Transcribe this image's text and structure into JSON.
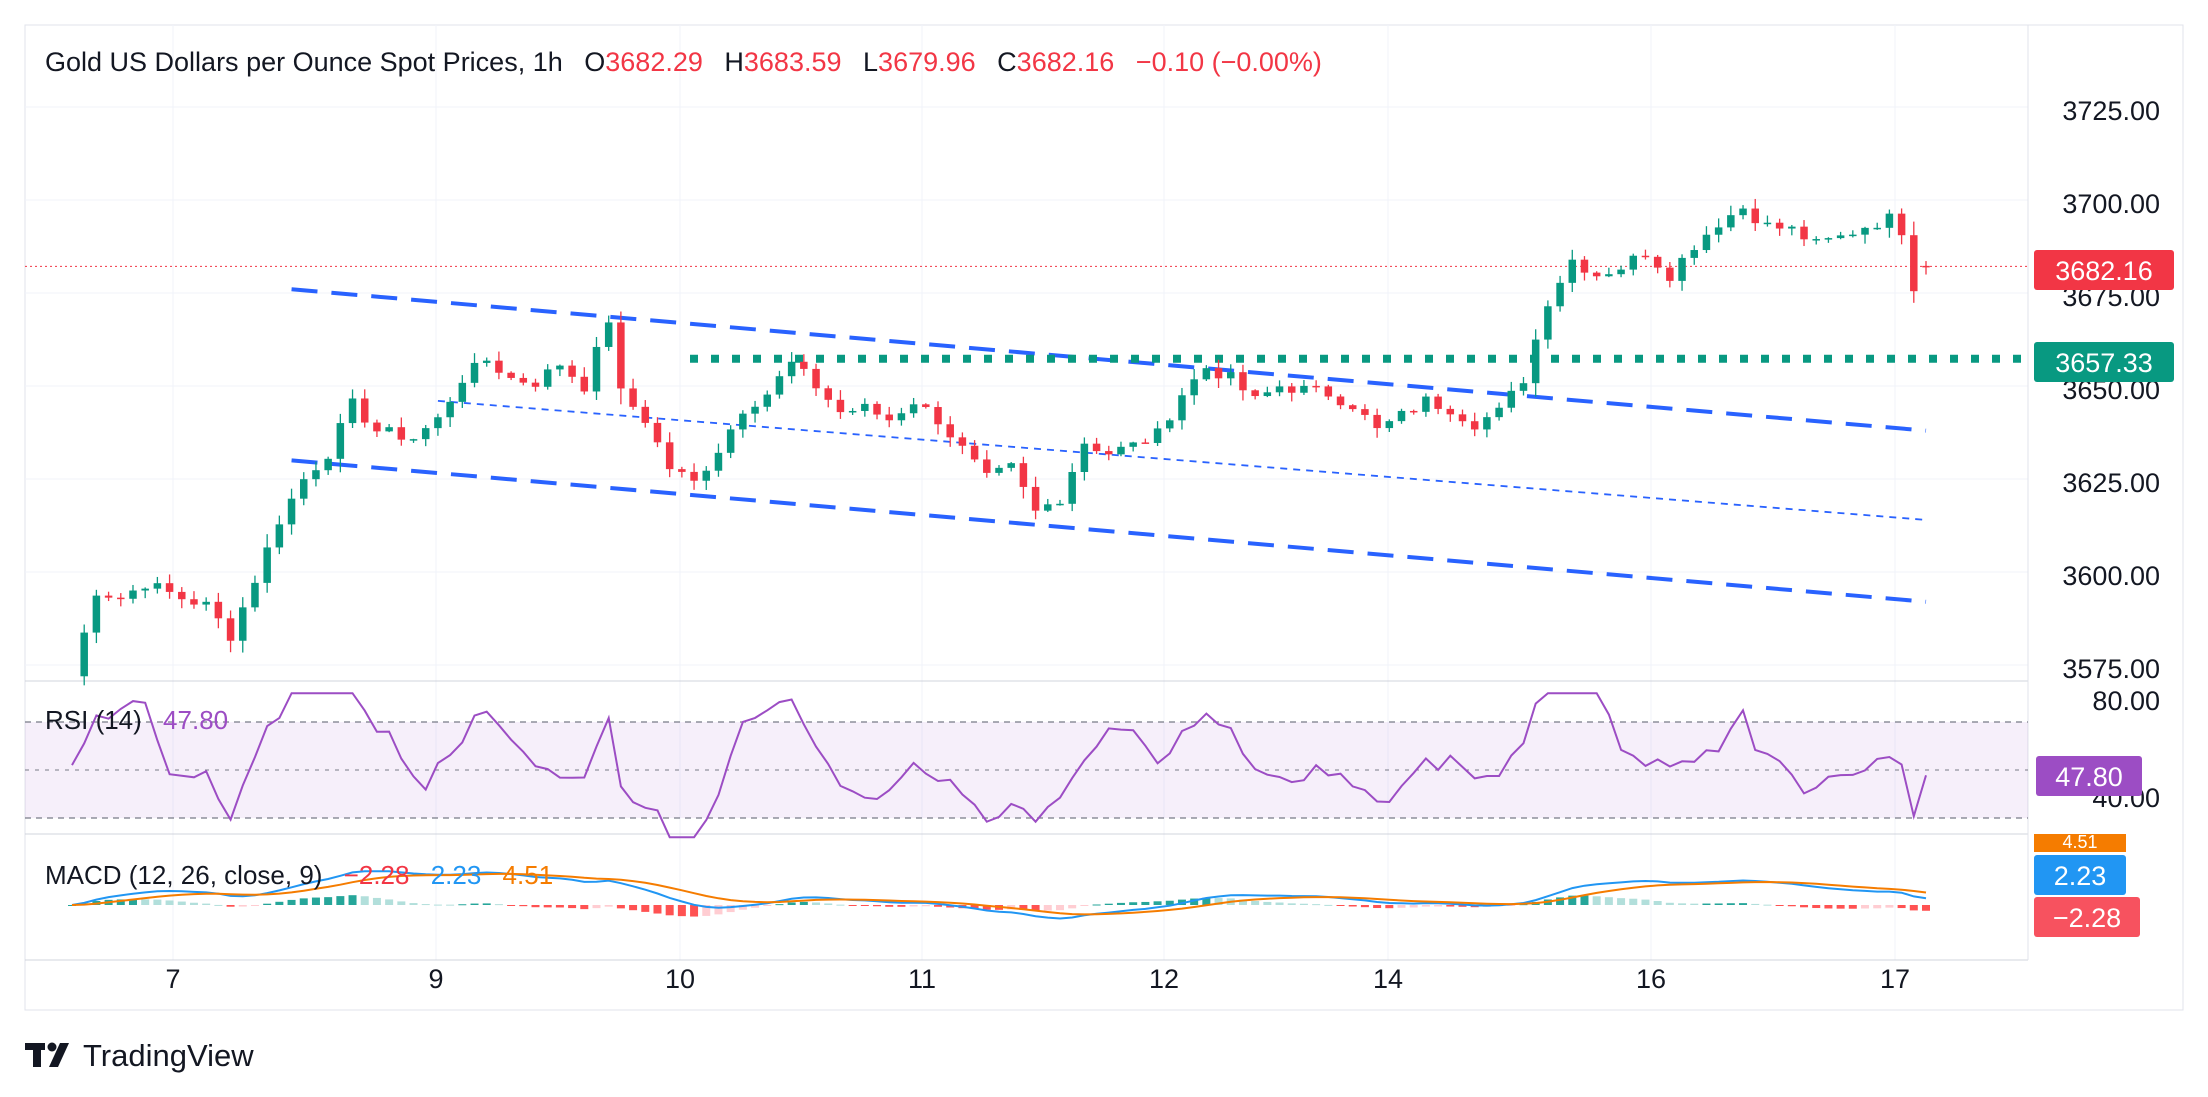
{
  "header": {
    "title": "Gold US Dollars per Ounce Spot Prices, 1h",
    "o_label": "O",
    "o_value": "3682.29",
    "h_label": "H",
    "h_value": "3683.59",
    "l_label": "L",
    "l_value": "3679.96",
    "c_label": "C",
    "c_value": "3682.16",
    "change": "−0.10 (−0.00%)"
  },
  "price_axis": {
    "ticks": [
      "3725.00",
      "3700.00",
      "3675.00",
      "3650.00",
      "3625.00",
      "3600.00",
      "3575.00"
    ],
    "last_price_label": "3682.16",
    "level_label": "3657.33"
  },
  "rsi": {
    "label": "RSI (14)",
    "value": "47.80",
    "ticks": [
      "80.00",
      "40.00"
    ],
    "current_label": "47.80"
  },
  "macd": {
    "label": "MACD (12, 26, close, 9)",
    "hist": "−2.28",
    "macd": "2.23",
    "signal": "4.51",
    "badge_signal": "4.51",
    "badge_macd": "2.23",
    "badge_hist": "−2.28"
  },
  "x_axis": {
    "ticks": [
      "7",
      "9",
      "10",
      "11",
      "12",
      "14",
      "16",
      "17"
    ]
  },
  "branding": {
    "logo_text": "TradingView"
  },
  "colors": {
    "up": "#089981",
    "down": "#f23645",
    "channel": "#2962ff",
    "support": "#089981",
    "rsi": "#9c4dc4",
    "macd": "#2196f3",
    "signal": "#f57c00"
  },
  "chart_data": {
    "type": "candlestick",
    "interval": "1h",
    "instrument": "Gold US Dollars per Ounce Spot Prices",
    "ohlc_last": {
      "open": 3682.29,
      "high": 3683.59,
      "low": 3679.96,
      "close": 3682.16,
      "change": -0.1,
      "change_pct": -0.0
    },
    "y_range": [
      3570,
      3735
    ],
    "x_ticks": [
      "7",
      "9",
      "10",
      "11",
      "12",
      "14",
      "16",
      "17"
    ],
    "close_path": [
      [
        0,
        3572
      ],
      [
        2,
        3595
      ],
      [
        4,
        3593
      ],
      [
        6,
        3597
      ],
      [
        9,
        3593
      ],
      [
        11,
        3591
      ],
      [
        13,
        3583
      ],
      [
        15,
        3598
      ],
      [
        17,
        3614
      ],
      [
        19,
        3625
      ],
      [
        21,
        3632
      ],
      [
        23,
        3645
      ],
      [
        25,
        3638
      ],
      [
        28,
        3636
      ],
      [
        30,
        3641
      ],
      [
        32,
        3652
      ],
      [
        34,
        3657
      ],
      [
        36,
        3652
      ],
      [
        38,
        3651
      ],
      [
        40,
        3656
      ],
      [
        42,
        3650
      ],
      [
        44,
        3668
      ],
      [
        45,
        3648
      ],
      [
        47,
        3641
      ],
      [
        49,
        3628
      ],
      [
        51,
        3624
      ],
      [
        53,
        3633
      ],
      [
        55,
        3644
      ],
      [
        57,
        3648
      ],
      [
        59,
        3656
      ],
      [
        61,
        3650
      ],
      [
        63,
        3643
      ],
      [
        65,
        3644
      ],
      [
        67,
        3641
      ],
      [
        69,
        3646
      ],
      [
        71,
        3641
      ],
      [
        73,
        3633
      ],
      [
        75,
        3625
      ],
      [
        77,
        3628
      ],
      [
        79,
        3616
      ],
      [
        81,
        3620
      ],
      [
        83,
        3635
      ],
      [
        85,
        3632
      ],
      [
        87,
        3634
      ],
      [
        89,
        3637
      ],
      [
        91,
        3648
      ],
      [
        93,
        3655
      ],
      [
        95,
        3652
      ],
      [
        97,
        3646
      ],
      [
        99,
        3650
      ],
      [
        101,
        3649
      ],
      [
        103,
        3648
      ],
      [
        105,
        3645
      ],
      [
        107,
        3638
      ],
      [
        109,
        3642
      ],
      [
        111,
        3646
      ],
      [
        113,
        3644
      ],
      [
        115,
        3640
      ],
      [
        117,
        3643
      ],
      [
        119,
        3652
      ],
      [
        121,
        3673
      ],
      [
        123,
        3684
      ],
      [
        125,
        3680
      ],
      [
        127,
        3682
      ],
      [
        129,
        3686
      ],
      [
        131,
        3680
      ],
      [
        133,
        3688
      ],
      [
        135,
        3694
      ],
      [
        137,
        3698
      ],
      [
        139,
        3693
      ],
      [
        141,
        3692
      ],
      [
        143,
        3688
      ],
      [
        145,
        3690
      ],
      [
        147,
        3693
      ],
      [
        149,
        3695
      ],
      [
        150,
        3692
      ],
      [
        151,
        3677
      ],
      [
        152,
        3682
      ]
    ],
    "support_level": 3657.33,
    "channel_lines": [
      {
        "name": "upper",
        "from": [
          18,
          3676
        ],
        "to": [
          152,
          3638
        ]
      },
      {
        "name": "middle",
        "from": [
          30,
          3646
        ],
        "to": [
          152,
          3614
        ]
      },
      {
        "name": "lower",
        "from": [
          18,
          3630
        ],
        "to": [
          152,
          3592
        ]
      }
    ],
    "rsi": {
      "period": 14,
      "last": 47.8,
      "levels": [
        70,
        30
      ],
      "y_range": [
        20,
        90
      ]
    },
    "macd": {
      "fast": 12,
      "slow": 26,
      "signal": 9,
      "macd_last": 2.23,
      "signal_last": 4.51,
      "hist_last": -2.28
    }
  }
}
